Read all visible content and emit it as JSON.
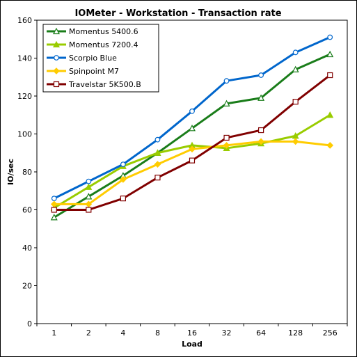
{
  "chart_data": {
    "type": "line",
    "title": "IOMeter - Workstation - Transaction rate",
    "xlabel": "Load",
    "ylabel": "IO/sec",
    "categories": [
      "1",
      "2",
      "4",
      "8",
      "16",
      "32",
      "64",
      "128",
      "256"
    ],
    "ylim": [
      0,
      160
    ],
    "yticks": [
      0,
      20,
      40,
      60,
      80,
      100,
      120,
      140,
      160
    ],
    "grid": false,
    "legend_position": "top-left",
    "series": [
      {
        "name": "Momentus 5400.6",
        "color": "#1a7d1a",
        "marker": "triangle-open",
        "values": [
          56,
          67,
          78,
          90,
          103,
          116,
          119,
          134,
          142
        ]
      },
      {
        "name": "Momentus 7200.4",
        "color": "#99cc00",
        "marker": "triangle-filled",
        "values": [
          61,
          72,
          83,
          90,
          94,
          92.5,
          95,
          99,
          110
        ]
      },
      {
        "name": "Scorpio Blue",
        "color": "#0066cc",
        "marker": "circle-open",
        "values": [
          66,
          75,
          84,
          97,
          112,
          128,
          131,
          143,
          151
        ]
      },
      {
        "name": "Spinpoint M7",
        "color": "#ffcc00",
        "marker": "diamond-filled",
        "values": [
          63,
          63,
          76,
          84,
          92,
          94,
          96,
          96,
          94
        ]
      },
      {
        "name": "Travelstar 5K500.B",
        "color": "#800000",
        "marker": "square-open",
        "values": [
          60,
          60,
          66,
          77,
          86,
          98,
          102,
          117,
          131
        ]
      }
    ]
  }
}
